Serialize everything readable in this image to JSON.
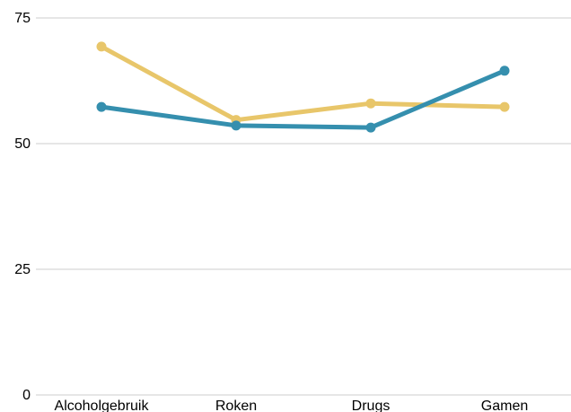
{
  "chart_data": {
    "type": "line",
    "categories": [
      "Alcoholgebruik",
      "Roken",
      "Drugs",
      "Gamen"
    ],
    "series": [
      {
        "color": "#e8c66a",
        "values": [
          69.3,
          54.7,
          58.0,
          57.3
        ]
      },
      {
        "color": "#358fae",
        "values": [
          57.3,
          53.6,
          53.2,
          64.5
        ]
      }
    ],
    "ylim": [
      0,
      75
    ],
    "yticks": [
      0,
      25,
      50,
      75
    ],
    "grid": true,
    "legend": "none"
  }
}
